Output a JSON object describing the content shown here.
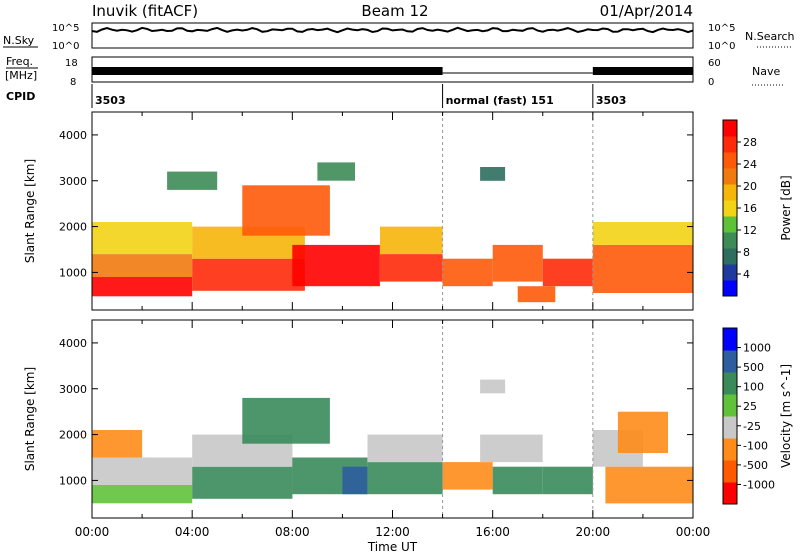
{
  "header": {
    "station": "Inuvik (fitACF)",
    "beam": "Beam 12",
    "date": "01/Apr/2014"
  },
  "small_panels": {
    "nsky_label": "N.Sky",
    "nsearch_label": "N.Search",
    "freq_label_1": "Freq.",
    "freq_label_2": "[MHz]",
    "nave_label": "Nave",
    "cpid_label": "CPID",
    "noise_ticks_left": [
      "10^5",
      "10^0"
    ],
    "noise_ticks_right": [
      "10^5",
      "10^0"
    ],
    "freq_ticks_left": [
      "18",
      "8"
    ],
    "nave_ticks_right": [
      "60",
      "0"
    ],
    "cpid_segments": [
      {
        "label": "3503",
        "start": 0,
        "end": 14
      },
      {
        "label": "normal (fast) 151",
        "start": 14,
        "end": 20
      },
      {
        "label": "3503",
        "start": 20,
        "end": 24
      }
    ]
  },
  "chart_data": [
    {
      "type": "heatmap",
      "title": "",
      "quantity": "Power",
      "colorbar_label": "Power [dB]",
      "ylabel": "Slant Range [km]",
      "xlabel": "",
      "xlim": [
        0,
        24
      ],
      "ylim": [
        180,
        4500
      ],
      "yticks": [
        1000,
        2000,
        3000,
        4000
      ],
      "colorbar_ticks": [
        "4",
        "8",
        "12",
        "16",
        "20",
        "24",
        "28"
      ],
      "colorbar_range": [
        0,
        30
      ],
      "colors": [
        "#0000ff",
        "#1e3a9e",
        "#2e6e5e",
        "#3d8b55",
        "#5ec236",
        "#f2d316",
        "#f5b50a",
        "#f07a10",
        "#ff5a0a",
        "#ff2a0a",
        "#ff0000"
      ],
      "cells": [
        {
          "t0": 0.0,
          "t1": 4.0,
          "r0": 480,
          "r1": 900,
          "level": 0.95
        },
        {
          "t0": 0.0,
          "t1": 4.0,
          "r0": 900,
          "r1": 1400,
          "level": 0.7
        },
        {
          "t0": 0.0,
          "t1": 4.0,
          "r0": 1400,
          "r1": 2100,
          "level": 0.45
        },
        {
          "t0": 4.0,
          "t1": 8.5,
          "r0": 600,
          "r1": 1300,
          "level": 0.85
        },
        {
          "t0": 4.0,
          "t1": 8.5,
          "r0": 1300,
          "r1": 2000,
          "level": 0.55
        },
        {
          "t0": 6.0,
          "t1": 9.5,
          "r0": 1800,
          "r1": 2900,
          "level": 0.75
        },
        {
          "t0": 8.0,
          "t1": 11.5,
          "r0": 700,
          "r1": 1600,
          "level": 0.95
        },
        {
          "t0": 11.5,
          "t1": 14.0,
          "r0": 800,
          "r1": 1400,
          "level": 0.85
        },
        {
          "t0": 11.5,
          "t1": 14.0,
          "r0": 1400,
          "r1": 2000,
          "level": 0.55
        },
        {
          "t0": 14.0,
          "t1": 16.0,
          "r0": 700,
          "r1": 1300,
          "level": 0.8
        },
        {
          "t0": 16.0,
          "t1": 18.0,
          "r0": 800,
          "r1": 1600,
          "level": 0.75
        },
        {
          "t0": 17.0,
          "t1": 18.5,
          "r0": 350,
          "r1": 700,
          "level": 0.8
        },
        {
          "t0": 18.0,
          "t1": 20.0,
          "r0": 700,
          "r1": 1300,
          "level": 0.9
        },
        {
          "t0": 20.0,
          "t1": 24.0,
          "r0": 550,
          "r1": 1600,
          "level": 0.8
        },
        {
          "t0": 20.0,
          "t1": 24.0,
          "r0": 1600,
          "r1": 2100,
          "level": 0.5
        },
        {
          "t0": 3.0,
          "t1": 5.0,
          "r0": 2800,
          "r1": 3200,
          "level": 0.3
        },
        {
          "t0": 9.0,
          "t1": 10.5,
          "r0": 3000,
          "r1": 3400,
          "level": 0.3
        },
        {
          "t0": 15.5,
          "t1": 16.5,
          "r0": 3000,
          "r1": 3300,
          "level": 0.2
        }
      ]
    },
    {
      "type": "heatmap",
      "title": "",
      "quantity": "Velocity",
      "colorbar_label": "Velocity [m s^-1]",
      "ylabel": "Slant Range [km]",
      "xlabel": "Time UT",
      "xlim": [
        0,
        24
      ],
      "ylim": [
        180,
        4500
      ],
      "yticks": [
        1000,
        2000,
        3000,
        4000
      ],
      "xticks": [
        "00:00",
        "04:00",
        "08:00",
        "12:00",
        "16:00",
        "20:00",
        "00:00"
      ],
      "colorbar_ticks": [
        "-1000",
        "-500",
        "-100",
        "-25",
        "25",
        "100",
        "500",
        "1000"
      ],
      "colorbar_range": [
        -1000,
        1000
      ],
      "colors": [
        "#ff0000",
        "#ff5a00",
        "#ff8c1a",
        "#c8c8c8",
        "#60c23a",
        "#3a8a5a",
        "#2e5e9e",
        "#0000ff"
      ],
      "cells": [
        {
          "t0": 0.0,
          "t1": 4.0,
          "r0": 500,
          "r1": 900,
          "level": 4
        },
        {
          "t0": 0.0,
          "t1": 4.0,
          "r0": 900,
          "r1": 1500,
          "level": 3
        },
        {
          "t0": 0.0,
          "t1": 2.0,
          "r0": 1500,
          "r1": 2100,
          "level": 2
        },
        {
          "t0": 4.0,
          "t1": 8.0,
          "r0": 600,
          "r1": 1300,
          "level": 5
        },
        {
          "t0": 4.0,
          "t1": 8.0,
          "r0": 1300,
          "r1": 2000,
          "level": 3
        },
        {
          "t0": 6.0,
          "t1": 9.5,
          "r0": 1800,
          "r1": 2800,
          "level": 5
        },
        {
          "t0": 8.0,
          "t1": 11.0,
          "r0": 700,
          "r1": 1500,
          "level": 5
        },
        {
          "t0": 10.0,
          "t1": 11.0,
          "r0": 700,
          "r1": 1300,
          "level": 6
        },
        {
          "t0": 11.0,
          "t1": 14.0,
          "r0": 700,
          "r1": 1400,
          "level": 5
        },
        {
          "t0": 11.0,
          "t1": 14.0,
          "r0": 1400,
          "r1": 2000,
          "level": 3
        },
        {
          "t0": 14.0,
          "t1": 16.0,
          "r0": 800,
          "r1": 1400,
          "level": 2
        },
        {
          "t0": 15.5,
          "t1": 18.0,
          "r0": 1400,
          "r1": 2000,
          "level": 3
        },
        {
          "t0": 16.0,
          "t1": 18.0,
          "r0": 700,
          "r1": 1300,
          "level": 5
        },
        {
          "t0": 18.0,
          "t1": 20.0,
          "r0": 700,
          "r1": 1300,
          "level": 5
        },
        {
          "t0": 20.0,
          "t1": 22.0,
          "r0": 1300,
          "r1": 2100,
          "level": 3
        },
        {
          "t0": 20.5,
          "t1": 24.0,
          "r0": 500,
          "r1": 1300,
          "level": 2
        },
        {
          "t0": 21.0,
          "t1": 23.0,
          "r0": 1600,
          "r1": 2500,
          "level": 2
        },
        {
          "t0": 15.5,
          "t1": 16.5,
          "r0": 2900,
          "r1": 3200,
          "level": 3
        }
      ]
    }
  ]
}
